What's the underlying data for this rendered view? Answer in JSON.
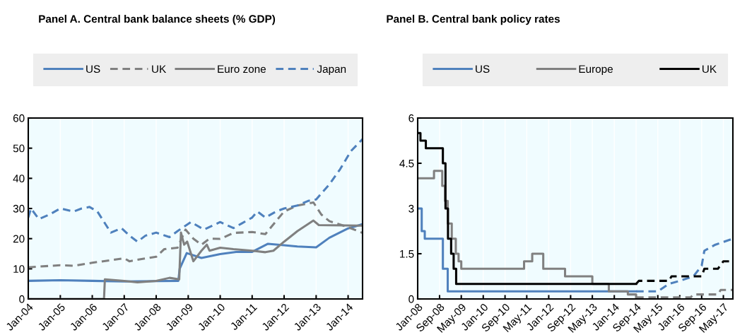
{
  "chart_data": [
    {
      "type": "line",
      "title": "Panel A. Central bank balance sheets (% GDP)",
      "legend": "top",
      "grid": "x",
      "xlim": [
        "2004-01-01",
        "2014-06-15"
      ],
      "ylim": [
        0,
        60
      ],
      "yticks": [
        0,
        10,
        20,
        30,
        40,
        50,
        60
      ],
      "xticks": [
        {
          "value": "2004-01-01",
          "label": "Jan-04"
        },
        {
          "value": "2005-01-01",
          "label": "Jan-05"
        },
        {
          "value": "2006-01-01",
          "label": "Jan-06"
        },
        {
          "value": "2007-01-01",
          "label": "Jan-07"
        },
        {
          "value": "2008-01-01",
          "label": "Jan-08"
        },
        {
          "value": "2009-01-01",
          "label": "Jan-09"
        },
        {
          "value": "2010-01-01",
          "label": "Jan-10"
        },
        {
          "value": "2011-01-01",
          "label": "Jan-11"
        },
        {
          "value": "2012-01-01",
          "label": "Jan-12"
        },
        {
          "value": "2013-01-01",
          "label": "Jan-13"
        },
        {
          "value": "2014-01-01",
          "label": "Jan-14"
        }
      ],
      "series": [
        {
          "name": "US",
          "color": "#4f81bd",
          "line_style": "solid",
          "x": [
            "2004-01-01",
            "2005-01-01",
            "2006-01-01",
            "2007-01-01",
            "2008-01-01",
            "2008-09-10",
            "2008-09-25",
            "2008-12-15",
            "2009-06-01",
            "2010-01-01",
            "2010-07-01",
            "2011-01-01",
            "2011-07-01",
            "2012-01-01",
            "2012-06-01",
            "2013-01-01",
            "2013-06-01",
            "2014-01-01",
            "2014-06-15"
          ],
          "values": [
            6.0,
            6.2,
            6.0,
            5.8,
            5.9,
            6.0,
            10,
            15.2,
            13.6,
            14.9,
            15.6,
            15.6,
            18.3,
            17.8,
            17.4,
            17.1,
            20.3,
            23.4,
            24.8
          ]
        },
        {
          "name": "UK",
          "color": "#808080",
          "line_style": "dashed",
          "x": [
            "2004-01-01",
            "2005-01-01",
            "2005-06-01",
            "2006-01-01",
            "2006-09-01",
            "2007-01-01",
            "2007-03-01",
            "2007-06-01",
            "2008-01-01",
            "2008-04-01",
            "2008-09-01",
            "2008-12-01",
            "2009-03-01",
            "2009-06-01",
            "2009-09-01",
            "2010-01-01",
            "2010-06-01",
            "2011-01-01",
            "2011-06-01",
            "2011-10-01",
            "2012-01-01",
            "2012-06-01",
            "2012-12-01",
            "2013-03-01",
            "2013-06-01",
            "2014-01-01",
            "2014-06-15"
          ],
          "values": [
            10.5,
            11.2,
            11,
            12,
            13,
            13.5,
            12.5,
            13,
            14,
            16.5,
            17,
            23,
            20,
            18,
            20,
            19.9,
            21.9,
            22.2,
            21.5,
            25.8,
            29,
            31,
            32,
            28,
            25.8,
            23.8,
            21.9
          ]
        },
        {
          "name": "Euro zone",
          "color": "#808080",
          "line_style": "solid",
          "x": [
            "2004-01-01",
            "2006-05-15",
            "2006-05-25",
            "2007-01-01",
            "2007-06-01",
            "2008-01-01",
            "2008-06-01",
            "2008-09-20",
            "2008-10-10",
            "2008-11-15",
            "2008-12-20",
            "2009-03-01",
            "2009-06-01",
            "2009-08-01",
            "2009-09-01",
            "2010-01-01",
            "2010-06-01",
            "2011-01-01",
            "2011-06-01",
            "2011-09-01",
            "2012-01-01",
            "2012-06-01",
            "2012-12-01",
            "2013-02-01",
            "2014-06-15"
          ],
          "values": [
            0,
            0,
            6.5,
            6,
            5.5,
            6,
            7,
            6.5,
            22,
            18,
            19,
            12.5,
            16,
            18,
            16,
            17,
            16.5,
            16,
            15.5,
            16,
            19,
            22.5,
            26,
            24.5,
            24.3
          ]
        },
        {
          "name": "Japan",
          "color": "#4f81bd",
          "line_style": "dashed",
          "x": [
            "2004-01-01",
            "2004-02-01",
            "2004-05-01",
            "2004-09-01",
            "2005-01-01",
            "2005-06-01",
            "2005-09-01",
            "2005-12-01",
            "2006-03-01",
            "2006-08-01",
            "2006-12-01",
            "2007-03-01",
            "2007-06-01",
            "2007-09-01",
            "2008-01-01",
            "2008-06-01",
            "2008-09-01",
            "2009-02-01",
            "2009-07-01",
            "2010-01-01",
            "2010-06-01",
            "2010-09-01",
            "2011-01-01",
            "2011-03-01",
            "2011-06-01",
            "2011-10-01",
            "2012-01-01",
            "2012-06-01",
            "2012-10-01",
            "2013-01-01",
            "2013-06-01",
            "2013-10-01",
            "2014-02-01",
            "2014-06-15"
          ],
          "values": [
            27,
            30,
            26.5,
            28,
            30,
            29,
            30,
            30.5,
            29,
            22,
            23.5,
            21,
            19,
            21,
            22,
            20.5,
            22.5,
            25.5,
            23,
            25.5,
            23.5,
            25,
            27,
            29,
            27,
            29,
            30,
            31,
            32.5,
            33,
            38,
            43,
            49,
            53
          ]
        }
      ]
    },
    {
      "type": "line",
      "title": "Panel B. Central bank policy rates",
      "legend": "top",
      "grid": "x",
      "xlim": [
        "2008-01-01",
        "2017-08-15"
      ],
      "ylim": [
        0,
        6
      ],
      "yticks": [
        0,
        1.5,
        3,
        4.5,
        6
      ],
      "xticks": [
        {
          "value": "2008-01-01",
          "label": "Jan-08"
        },
        {
          "value": "2008-09-01",
          "label": "Sep-08"
        },
        {
          "value": "2009-05-01",
          "label": "May-09"
        },
        {
          "value": "2010-01-01",
          "label": "Jan-10"
        },
        {
          "value": "2010-09-01",
          "label": "Sep-10"
        },
        {
          "value": "2011-05-01",
          "label": "May-11"
        },
        {
          "value": "2012-01-01",
          "label": "Jan-12"
        },
        {
          "value": "2012-09-01",
          "label": "Sep-12"
        },
        {
          "value": "2013-05-01",
          "label": "May-13"
        },
        {
          "value": "2014-01-01",
          "label": "Jan-14"
        },
        {
          "value": "2014-09-01",
          "label": "Sep-14"
        },
        {
          "value": "2015-05-01",
          "label": "May-15"
        },
        {
          "value": "2016-01-01",
          "label": "Jan-16"
        },
        {
          "value": "2016-09-01",
          "label": "Sep-16"
        },
        {
          "value": "2017-05-01",
          "label": "May-17"
        }
      ],
      "series": [
        {
          "name": "US",
          "type": "step",
          "color": "#4f81bd",
          "line_style": "solid",
          "x": [
            "2008-01-01",
            "2008-02-15",
            "2008-03-20",
            "2008-10-08",
            "2008-12-01",
            "2014-09-01"
          ],
          "values": [
            3.0,
            2.25,
            2.0,
            1.0,
            0.25,
            0.25
          ]
        },
        {
          "name": "Europe",
          "type": "step",
          "color": "#808080",
          "line_style": "solid",
          "x": [
            "2008-01-01",
            "2008-07-01",
            "2008-10-01",
            "2008-11-01",
            "2008-12-01",
            "2009-01-15",
            "2009-03-01",
            "2009-04-01",
            "2009-05-01",
            "2011-04-01",
            "2011-07-01",
            "2011-11-01",
            "2012-07-01",
            "2013-05-01",
            "2013-11-01",
            "2014-06-01",
            "2014-09-01"
          ],
          "values": [
            4.0,
            4.25,
            3.75,
            3.25,
            2.5,
            2.0,
            1.5,
            1.25,
            1.0,
            1.25,
            1.5,
            1.0,
            0.75,
            0.5,
            0.25,
            0.15,
            0.05
          ]
        },
        {
          "name": "UK",
          "type": "step",
          "color": "#000000",
          "line_style": "solid",
          "x": [
            "2008-01-01",
            "2008-02-01",
            "2008-04-01",
            "2008-10-08",
            "2008-11-06",
            "2008-12-04",
            "2009-01-08",
            "2009-02-05",
            "2009-03-05",
            "2014-09-01"
          ],
          "values": [
            5.5,
            5.25,
            5.0,
            4.5,
            3.0,
            2.0,
            1.5,
            1.0,
            0.5,
            0.5
          ]
        },
        {
          "color": "#4f81bd",
          "line_style": "dashed",
          "x": [
            "2014-09-01",
            "2015-05-01",
            "2015-09-01",
            "2016-01-01",
            "2016-06-01",
            "2016-09-01",
            "2016-10-01",
            "2017-02-01",
            "2017-08-15"
          ],
          "values": [
            0.25,
            0.25,
            0.5,
            0.6,
            0.75,
            1.1,
            1.6,
            1.8,
            2.0
          ]
        },
        {
          "color": "#808080",
          "line_style": "dashed",
          "x": [
            "2014-09-01",
            "2016-05-01",
            "2016-06-01",
            "2017-03-01",
            "2017-04-01",
            "2017-08-15"
          ],
          "values": [
            0.05,
            0.05,
            0.15,
            0.15,
            0.3,
            0.3
          ]
        },
        {
          "color": "#000000",
          "line_style": "dashed",
          "x": [
            "2014-09-01",
            "2014-10-01",
            "2015-09-01",
            "2015-10-01",
            "2016-09-01",
            "2016-10-01",
            "2017-03-01",
            "2017-05-01",
            "2017-08-15"
          ],
          "values": [
            0.5,
            0.6,
            0.6,
            0.75,
            0.75,
            1.0,
            1.0,
            1.25,
            1.25
          ]
        }
      ]
    }
  ]
}
